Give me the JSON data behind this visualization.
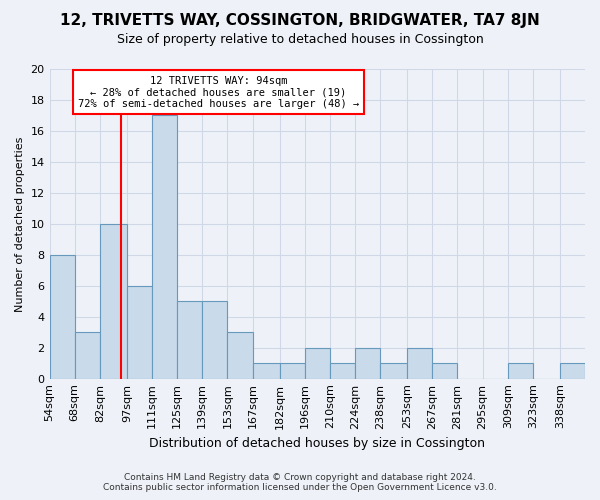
{
  "title": "12, TRIVETTS WAY, COSSINGTON, BRIDGWATER, TA7 8JN",
  "subtitle": "Size of property relative to detached houses in Cossington",
  "xlabel": "Distribution of detached houses by size in Cossington",
  "ylabel": "Number of detached properties",
  "bin_edges": [
    54,
    68,
    82,
    97,
    111,
    125,
    139,
    153,
    167,
    182,
    196,
    210,
    224,
    238,
    253,
    267,
    281,
    295,
    309,
    323,
    338,
    352
  ],
  "bin_heights": [
    8,
    3,
    10,
    6,
    17,
    5,
    5,
    3,
    1,
    1,
    2,
    1,
    2,
    1,
    2,
    1,
    0,
    0,
    1,
    0,
    1
  ],
  "bar_color": "#c9daea",
  "bar_edge_color": "#6699bb",
  "grid_color": "#d0d8e8",
  "property_line_x": 94,
  "annotation_text": "12 TRIVETTS WAY: 94sqm\n← 28% of detached houses are smaller (19)\n72% of semi-detached houses are larger (48) →",
  "annotation_box_color": "white",
  "annotation_box_edge_color": "red",
  "property_line_color": "red",
  "ylim": [
    0,
    20
  ],
  "yticks": [
    0,
    2,
    4,
    6,
    8,
    10,
    12,
    14,
    16,
    18,
    20
  ],
  "xtick_labels": [
    "54sqm",
    "68sqm",
    "82sqm",
    "97sqm",
    "111sqm",
    "125sqm",
    "139sqm",
    "153sqm",
    "167sqm",
    "182sqm",
    "196sqm",
    "210sqm",
    "224sqm",
    "238sqm",
    "253sqm",
    "267sqm",
    "281sqm",
    "295sqm",
    "309sqm",
    "323sqm",
    "338sqm"
  ],
  "footer_line1": "Contains HM Land Registry data © Crown copyright and database right 2024.",
  "footer_line2": "Contains public sector information licensed under the Open Government Licence v3.0.",
  "background_color": "#eef2f8"
}
